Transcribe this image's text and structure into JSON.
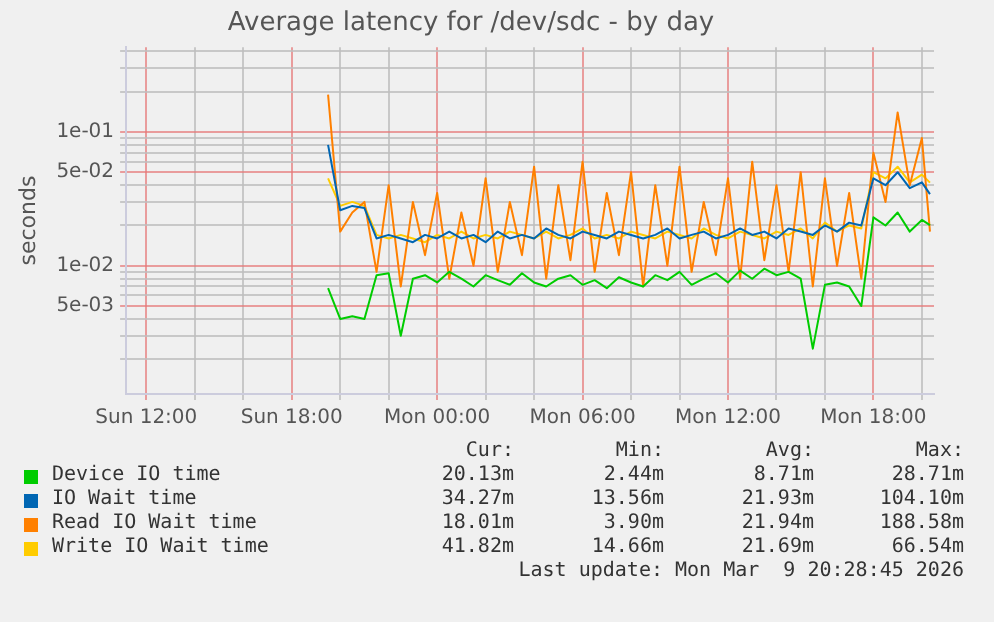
{
  "chart_data": {
    "type": "line",
    "title": "Average latency for /dev/sdc - by day",
    "ylabel": "seconds",
    "log": "y",
    "grid": true,
    "legend": "bottom",
    "marker": "none",
    "line_style": "solid",
    "x": [
      "2026-03-08T19:30",
      "2026-03-08T20:00",
      "2026-03-08T20:30",
      "2026-03-08T21:00",
      "2026-03-08T21:30",
      "2026-03-08T22:00",
      "2026-03-08T22:30",
      "2026-03-08T23:00",
      "2026-03-08T23:30",
      "2026-03-09T00:00",
      "2026-03-09T00:30",
      "2026-03-09T01:00",
      "2026-03-09T01:30",
      "2026-03-09T02:00",
      "2026-03-09T02:30",
      "2026-03-09T03:00",
      "2026-03-09T03:30",
      "2026-03-09T04:00",
      "2026-03-09T04:30",
      "2026-03-09T05:00",
      "2026-03-09T05:30",
      "2026-03-09T06:00",
      "2026-03-09T06:30",
      "2026-03-09T07:00",
      "2026-03-09T07:30",
      "2026-03-09T08:00",
      "2026-03-09T08:30",
      "2026-03-09T09:00",
      "2026-03-09T09:30",
      "2026-03-09T10:00",
      "2026-03-09T10:30",
      "2026-03-09T11:00",
      "2026-03-09T11:30",
      "2026-03-09T12:00",
      "2026-03-09T12:30",
      "2026-03-09T13:00",
      "2026-03-09T13:30",
      "2026-03-09T14:00",
      "2026-03-09T14:30",
      "2026-03-09T15:00",
      "2026-03-09T15:30",
      "2026-03-09T16:00",
      "2026-03-09T16:30",
      "2026-03-09T17:00",
      "2026-03-09T17:30",
      "2026-03-09T18:00",
      "2026-03-09T18:30",
      "2026-03-09T19:00",
      "2026-03-09T19:30",
      "2026-03-09T20:00",
      "2026-03-09T20:20"
    ],
    "xlim": [
      "2026-03-08T11:10",
      "2026-03-09T20:30"
    ],
    "xticks": [
      {
        "value": "2026-03-08T12:00",
        "label": "Sun 12:00"
      },
      {
        "value": "2026-03-08T14:00",
        "label": null
      },
      {
        "value": "2026-03-08T16:00",
        "label": null
      },
      {
        "value": "2026-03-08T18:00",
        "label": "Sun 18:00"
      },
      {
        "value": "2026-03-08T20:00",
        "label": null
      },
      {
        "value": "2026-03-08T22:00",
        "label": null
      },
      {
        "value": "2026-03-09T00:00",
        "label": "Mon 00:00"
      },
      {
        "value": "2026-03-09T02:00",
        "label": null
      },
      {
        "value": "2026-03-09T04:00",
        "label": null
      },
      {
        "value": "2026-03-09T06:00",
        "label": "Mon 06:00"
      },
      {
        "value": "2026-03-09T08:00",
        "label": null
      },
      {
        "value": "2026-03-09T10:00",
        "label": null
      },
      {
        "value": "2026-03-09T12:00",
        "label": "Mon 12:00"
      },
      {
        "value": "2026-03-09T14:00",
        "label": null
      },
      {
        "value": "2026-03-09T16:00",
        "label": null
      },
      {
        "value": "2026-03-09T18:00",
        "label": "Mon 18:00"
      },
      {
        "value": "2026-03-09T20:00",
        "label": null
      }
    ],
    "ylim": [
      0.0011,
      0.43
    ],
    "yticks": [
      {
        "value": 0.002,
        "label": null
      },
      {
        "value": 0.003,
        "label": null
      },
      {
        "value": 0.004,
        "label": null
      },
      {
        "value": 0.005,
        "label": "5e-03"
      },
      {
        "value": 0.006,
        "label": null
      },
      {
        "value": 0.007,
        "label": null
      },
      {
        "value": 0.008,
        "label": null
      },
      {
        "value": 0.009,
        "label": null
      },
      {
        "value": 0.01,
        "label": "1e-02"
      },
      {
        "value": 0.02,
        "label": null
      },
      {
        "value": 0.03,
        "label": null
      },
      {
        "value": 0.04,
        "label": null
      },
      {
        "value": 0.05,
        "label": "5e-02"
      },
      {
        "value": 0.06,
        "label": null
      },
      {
        "value": 0.07,
        "label": null
      },
      {
        "value": 0.08,
        "label": null
      },
      {
        "value": 0.09,
        "label": null
      },
      {
        "value": 0.1,
        "label": "1e-01"
      },
      {
        "value": 0.2,
        "label": null
      },
      {
        "value": 0.3,
        "label": null
      },
      {
        "value": 0.4,
        "label": null
      }
    ],
    "series": [
      {
        "name": "Device IO time",
        "color": "#00cc00",
        "values": [
          0.0068,
          0.004,
          0.0042,
          0.004,
          0.0085,
          0.0088,
          0.003,
          0.008,
          0.0085,
          0.0075,
          0.009,
          0.008,
          0.007,
          0.0085,
          0.0078,
          0.0072,
          0.0088,
          0.0075,
          0.007,
          0.008,
          0.0085,
          0.0072,
          0.0078,
          0.0068,
          0.0082,
          0.0075,
          0.007,
          0.0085,
          0.0078,
          0.009,
          0.0072,
          0.008,
          0.0088,
          0.0075,
          0.0092,
          0.008,
          0.0095,
          0.0085,
          0.009,
          0.008,
          0.0024,
          0.0072,
          0.0075,
          0.007,
          0.005,
          0.023,
          0.02,
          0.025,
          0.018,
          0.022,
          0.0201
        ]
      },
      {
        "name": "IO Wait time",
        "color": "#0066b3",
        "values": [
          0.08,
          0.026,
          0.028,
          0.027,
          0.016,
          0.017,
          0.016,
          0.015,
          0.017,
          0.016,
          0.018,
          0.016,
          0.017,
          0.015,
          0.018,
          0.016,
          0.017,
          0.016,
          0.019,
          0.017,
          0.016,
          0.018,
          0.017,
          0.016,
          0.018,
          0.017,
          0.016,
          0.017,
          0.019,
          0.016,
          0.017,
          0.018,
          0.016,
          0.017,
          0.019,
          0.017,
          0.018,
          0.016,
          0.019,
          0.018,
          0.017,
          0.02,
          0.018,
          0.021,
          0.02,
          0.045,
          0.04,
          0.05,
          0.038,
          0.042,
          0.0343
        ]
      },
      {
        "name": "Read IO Wait time",
        "color": "#ff8000",
        "values": [
          0.19,
          0.018,
          0.025,
          0.03,
          0.009,
          0.04,
          0.007,
          0.03,
          0.012,
          0.035,
          0.008,
          0.025,
          0.01,
          0.045,
          0.009,
          0.03,
          0.012,
          0.055,
          0.008,
          0.04,
          0.011,
          0.06,
          0.009,
          0.035,
          0.012,
          0.05,
          0.007,
          0.04,
          0.01,
          0.055,
          0.009,
          0.03,
          0.012,
          0.045,
          0.008,
          0.06,
          0.011,
          0.04,
          0.009,
          0.05,
          0.007,
          0.045,
          0.01,
          0.035,
          0.008,
          0.07,
          0.03,
          0.14,
          0.04,
          0.09,
          0.018
        ]
      },
      {
        "name": "Write IO Wait time",
        "color": "#ffcc00",
        "values": [
          0.045,
          0.028,
          0.03,
          0.028,
          0.017,
          0.016,
          0.017,
          0.016,
          0.015,
          0.017,
          0.016,
          0.018,
          0.016,
          0.017,
          0.016,
          0.018,
          0.017,
          0.016,
          0.018,
          0.016,
          0.017,
          0.019,
          0.016,
          0.017,
          0.016,
          0.018,
          0.017,
          0.016,
          0.018,
          0.017,
          0.016,
          0.019,
          0.017,
          0.016,
          0.018,
          0.017,
          0.016,
          0.018,
          0.017,
          0.019,
          0.016,
          0.021,
          0.018,
          0.02,
          0.019,
          0.05,
          0.045,
          0.055,
          0.042,
          0.048,
          0.0418
        ]
      }
    ],
    "annotations": [
      "Cur:",
      "Min:",
      "Avg:",
      "Max:",
      "20.13m",
      "2.44m",
      "8.71m",
      "28.71m",
      "34.27m",
      "13.56m",
      "21.93m",
      "104.10m",
      "18.01m",
      "3.90m",
      "21.94m",
      "188.58m",
      "41.82m",
      "14.66m",
      "21.69m",
      "66.54m",
      "Last update: Mon Mar  9 20:28:45 2026"
    ]
  }
}
